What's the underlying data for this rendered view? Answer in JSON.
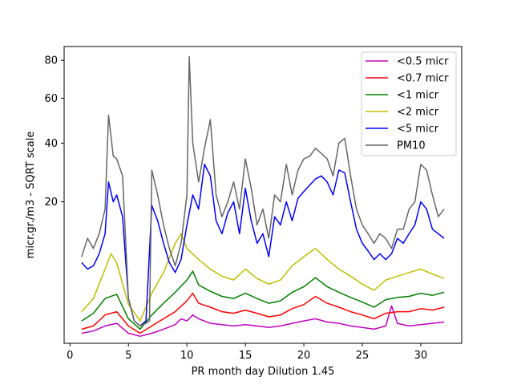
{
  "chart_data": {
    "type": "line",
    "title": "",
    "xlabel": "PR month day  Dilution 1.45",
    "ylabel": "micr.gr./m3 - SQRT scale",
    "y_scale": "sqrt",
    "xlim": [
      -0.5,
      33.5
    ],
    "ylim": [
      0,
      88
    ],
    "x_ticks": [
      0,
      5,
      10,
      15,
      20,
      25,
      30
    ],
    "y_ticks": [
      20,
      40,
      60,
      80
    ],
    "grid": false,
    "legend_position": "top-right",
    "series": [
      {
        "name": "<0.5 micr",
        "color": "#bf00bf",
        "x": [
          1,
          2,
          3,
          4,
          5,
          6,
          7,
          8,
          9,
          9.5,
          10,
          10.5,
          11,
          12,
          13,
          14,
          15,
          16,
          17,
          18,
          19,
          20,
          21,
          22,
          23,
          24,
          25,
          26,
          27,
          27.5,
          28,
          29,
          30,
          31,
          32
        ],
        "y": [
          0.1,
          0.15,
          0.3,
          0.4,
          0.1,
          0.05,
          0.1,
          0.2,
          0.35,
          0.6,
          0.5,
          0.8,
          0.6,
          0.4,
          0.35,
          0.3,
          0.35,
          0.3,
          0.25,
          0.3,
          0.4,
          0.5,
          0.6,
          0.45,
          0.4,
          0.3,
          0.25,
          0.2,
          0.3,
          1.4,
          0.4,
          0.3,
          0.35,
          0.4,
          0.45
        ]
      },
      {
        "name": "<0.7 micr",
        "color": "#ff0000",
        "x": [
          1,
          2,
          3,
          4,
          5,
          6,
          7,
          8,
          9,
          10,
          10.5,
          11,
          12,
          13,
          14,
          15,
          16,
          17,
          18,
          19,
          20,
          21,
          22,
          23,
          24,
          25,
          26,
          27,
          28,
          29,
          30,
          31,
          32
        ],
        "y": [
          0.2,
          0.3,
          0.8,
          1.0,
          0.3,
          0.1,
          0.3,
          0.6,
          1.0,
          1.8,
          2.5,
          1.6,
          1.3,
          1.0,
          0.9,
          1.1,
          0.9,
          0.7,
          0.8,
          1.2,
          1.5,
          2.2,
          1.6,
          1.3,
          1.0,
          0.8,
          0.6,
          0.9,
          1.0,
          1.0,
          1.2,
          1.1,
          1.3
        ]
      },
      {
        "name": "<1 micr",
        "color": "#008000",
        "x": [
          1,
          2,
          3,
          4,
          5,
          6,
          7,
          8,
          9,
          10,
          10.5,
          11,
          12,
          13,
          14,
          15,
          16,
          17,
          18,
          19,
          20,
          21,
          22,
          23,
          24,
          25,
          26,
          27,
          28,
          29,
          30,
          31,
          32
        ],
        "y": [
          0.5,
          0.9,
          2.0,
          2.4,
          0.6,
          0.2,
          0.8,
          1.6,
          2.6,
          4.0,
          5.2,
          3.4,
          2.7,
          2.2,
          2.0,
          2.5,
          2.0,
          1.6,
          1.8,
          2.6,
          3.2,
          4.3,
          3.2,
          2.6,
          2.1,
          1.7,
          1.3,
          1.9,
          2.1,
          2.2,
          2.5,
          2.3,
          2.6
        ]
      },
      {
        "name": "<2 micr",
        "color": "#bfbf00",
        "x": [
          1,
          2,
          3,
          3.5,
          4,
          5,
          6,
          7,
          8,
          9,
          9.5,
          10,
          11,
          12,
          13,
          14,
          15,
          16,
          17,
          18,
          19,
          20,
          21,
          22,
          23,
          24,
          25,
          26,
          27,
          28,
          29,
          30,
          31,
          32
        ],
        "y": [
          1.0,
          2.0,
          5.5,
          8.0,
          6.5,
          1.5,
          0.5,
          2.5,
          5.0,
          10.0,
          12.0,
          9.0,
          7.0,
          5.5,
          4.5,
          4.0,
          5.5,
          4.2,
          3.5,
          4.0,
          6.0,
          7.5,
          9.0,
          7.0,
          5.5,
          4.5,
          3.5,
          2.8,
          4.0,
          4.5,
          5.0,
          5.5,
          4.8,
          4.2
        ]
      },
      {
        "name": "<5 micr",
        "color": "#0000ff",
        "x": [
          1,
          1.5,
          2,
          2.5,
          3,
          3.3,
          3.7,
          4,
          4.5,
          5,
          5.5,
          6,
          6.5,
          7,
          7.5,
          8,
          8.5,
          9,
          9.5,
          10,
          10.5,
          11,
          11.5,
          12,
          12.5,
          13,
          13.5,
          14,
          14.5,
          15,
          15.5,
          16,
          16.5,
          17,
          17.5,
          18,
          18.5,
          19,
          19.5,
          20,
          20.5,
          21,
          21.5,
          22,
          22.5,
          23,
          23.5,
          24,
          24.5,
          25,
          25.5,
          26,
          26.5,
          27,
          27.5,
          28,
          28.5,
          29,
          29.5,
          30,
          30.5,
          31,
          31.5,
          32
        ],
        "y": [
          6.5,
          5.5,
          6.0,
          8.0,
          12.0,
          26.0,
          20.0,
          22.0,
          16.0,
          2.0,
          0.5,
          0.3,
          0.5,
          19.0,
          15.0,
          10.0,
          6.5,
          5.0,
          7.0,
          14.0,
          22.0,
          18.0,
          32.0,
          28.0,
          15.0,
          12.0,
          17.0,
          20.0,
          12.0,
          24.0,
          15.0,
          10.0,
          12.0,
          7.5,
          16.0,
          14.0,
          20.0,
          15.0,
          21.0,
          23.0,
          25.0,
          27.0,
          28.0,
          26.0,
          22.0,
          30.0,
          29.0,
          20.0,
          13.0,
          10.0,
          8.5,
          7.0,
          8.0,
          7.0,
          8.0,
          11.0,
          10.0,
          12.0,
          14.0,
          20.0,
          18.0,
          13.0,
          12.0,
          11.0
        ]
      },
      {
        "name": "PM10",
        "color": "#666666",
        "x": [
          1,
          1.5,
          2,
          2.5,
          3,
          3.3,
          3.7,
          4,
          4.5,
          5,
          5.5,
          6,
          6.5,
          6.8,
          7,
          7.5,
          8,
          8.5,
          9,
          9.5,
          10,
          10.2,
          10.5,
          11,
          11.5,
          12,
          12.5,
          13,
          13.5,
          14,
          14.5,
          15,
          15.5,
          16,
          16.5,
          17,
          17.5,
          18,
          18.5,
          19,
          19.5,
          20,
          20.5,
          21,
          21.5,
          22,
          22.5,
          23,
          23.5,
          24,
          24.5,
          25,
          25.5,
          26,
          26.5,
          27,
          27.5,
          28,
          28.5,
          29,
          29.5,
          30,
          30.5,
          31,
          31.5,
          32
        ],
        "y": [
          7.5,
          11.0,
          9.0,
          12.0,
          18.0,
          52.0,
          35.0,
          34.0,
          28.0,
          2.0,
          0.5,
          0.3,
          0.4,
          0.5,
          30.0,
          22.0,
          14.0,
          9.0,
          6.0,
          10.0,
          22.0,
          82.0,
          40.0,
          26.0,
          38.0,
          50.0,
          22.0,
          16.0,
          20.0,
          26.0,
          18.0,
          34.0,
          24.0,
          14.0,
          18.0,
          11.0,
          22.0,
          20.0,
          32.0,
          22.0,
          30.0,
          34.0,
          35.0,
          38.0,
          36.0,
          34.0,
          28.0,
          40.0,
          42.0,
          28.0,
          18.0,
          14.0,
          12.0,
          10.0,
          12.0,
          11.0,
          9.0,
          13.0,
          13.0,
          18.0,
          20.0,
          32.0,
          30.0,
          22.0,
          16.0,
          18.0
        ]
      }
    ]
  }
}
